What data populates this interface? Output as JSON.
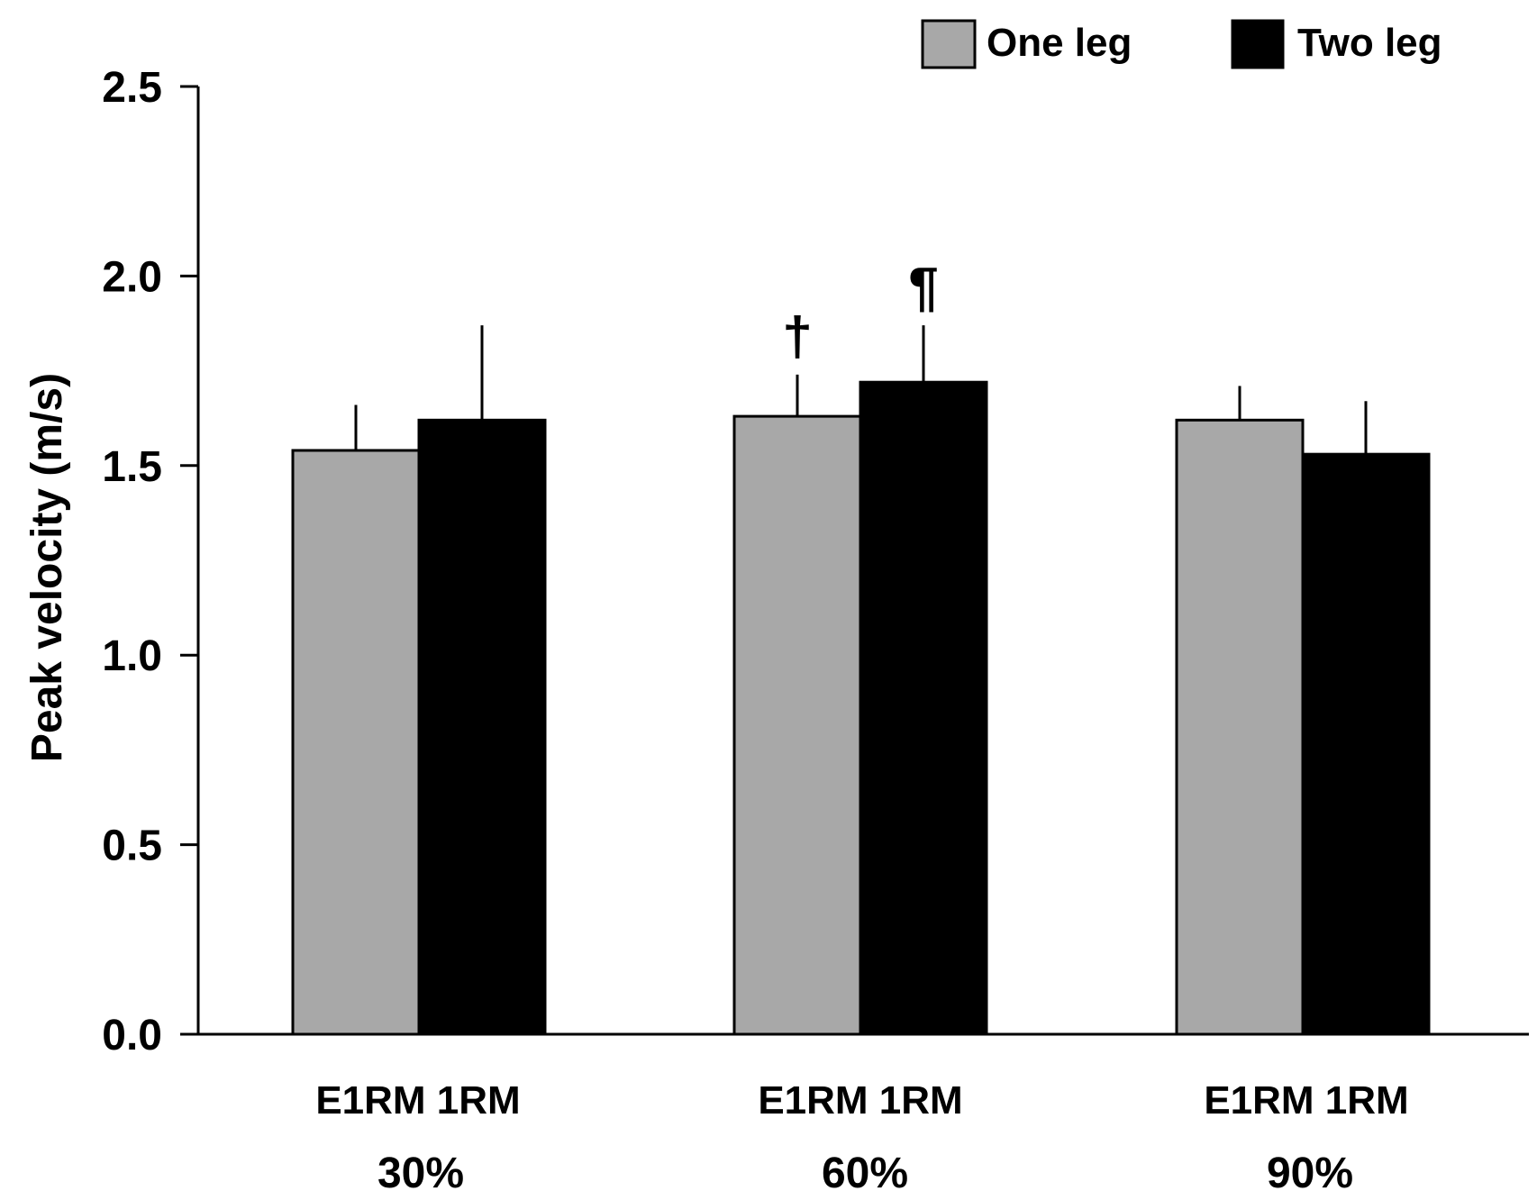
{
  "chart_data": {
    "type": "bar",
    "ylabel": "Peak velocity (m/s)",
    "ylim": [
      0,
      2.5
    ],
    "yticks": [
      0.0,
      0.5,
      1.0,
      1.5,
      2.0,
      2.5
    ],
    "ytick_labels": [
      "0.0",
      "0.5",
      "1.0",
      "1.5",
      "2.0",
      "2.5"
    ],
    "categories": [
      "30%",
      "60%",
      "90%"
    ],
    "category_sublabels": [
      "E1RM 1RM",
      "E1RM 1RM",
      "E1RM 1RM"
    ],
    "legend_position": "top-right",
    "series": [
      {
        "name": "One leg",
        "color": "#a8a8a8",
        "values": [
          1.54,
          1.63,
          1.62
        ],
        "errors": [
          0.12,
          0.11,
          0.09
        ],
        "annotations": [
          "",
          "†",
          ""
        ]
      },
      {
        "name": "Two leg",
        "color": "#000000",
        "values": [
          1.62,
          1.72,
          1.53
        ],
        "errors": [
          0.25,
          0.15,
          0.14
        ],
        "annotations": [
          "",
          "¶",
          ""
        ]
      }
    ]
  }
}
